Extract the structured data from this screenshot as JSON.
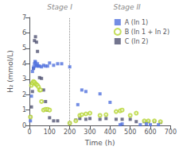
{
  "chart_data": {
    "type": "scatter",
    "xlabel": "Time (h)",
    "ylabel": "H₂ (mmol/L)",
    "annotations": [
      "Stage I",
      "Stage II"
    ],
    "vline_x": 200,
    "xlim": [
      0,
      700
    ],
    "ylim": [
      0,
      7
    ],
    "xticks": [
      0,
      100,
      200,
      300,
      400,
      500,
      600,
      700
    ],
    "yticks": [
      0,
      1,
      2,
      3,
      4,
      5,
      6,
      7
    ],
    "grid": false,
    "legend": "upper right",
    "series": [
      {
        "name": "A (In 1)",
        "marker": "square",
        "values": [
          [
            5,
            0.3
          ],
          [
            10,
            1.9
          ],
          [
            15,
            3.5
          ],
          [
            20,
            3.7
          ],
          [
            22,
            3.8
          ],
          [
            25,
            4.0
          ],
          [
            28,
            4.15
          ],
          [
            30,
            4.1
          ],
          [
            33,
            3.9
          ],
          [
            36,
            3.85
          ],
          [
            40,
            4.0
          ],
          [
            45,
            3.85
          ],
          [
            50,
            3.85
          ],
          [
            60,
            3.8
          ],
          [
            70,
            3.9
          ],
          [
            80,
            3.85
          ],
          [
            90,
            3.85
          ],
          [
            100,
            4.05
          ],
          [
            120,
            3.9
          ],
          [
            140,
            4.0
          ],
          [
            160,
            4.0
          ],
          [
            200,
            3.8
          ],
          [
            240,
            1.35
          ],
          [
            260,
            2.3
          ],
          [
            280,
            2.2
          ],
          [
            350,
            2.05
          ],
          [
            400,
            1.5
          ],
          [
            450,
            0.05
          ],
          [
            460,
            0.1
          ],
          [
            550,
            0.05
          ],
          [
            580,
            0.1
          ],
          [
            600,
            0.05
          ],
          [
            640,
            0.05
          ]
        ]
      },
      {
        "name": "B (In 1 + In 2)",
        "marker": "open_circle",
        "values": [
          [
            5,
            0.55
          ],
          [
            10,
            2.6
          ],
          [
            15,
            2.75
          ],
          [
            20,
            2.85
          ],
          [
            25,
            2.8
          ],
          [
            30,
            2.7
          ],
          [
            35,
            2.65
          ],
          [
            40,
            2.6
          ],
          [
            45,
            2.5
          ],
          [
            50,
            2.3
          ],
          [
            55,
            2.3
          ],
          [
            60,
            1.55
          ],
          [
            70,
            1.0
          ],
          [
            80,
            1.05
          ],
          [
            90,
            1.05
          ],
          [
            100,
            1.0
          ],
          [
            200,
            0.15
          ],
          [
            230,
            0.3
          ],
          [
            250,
            0.65
          ],
          [
            260,
            0.7
          ],
          [
            280,
            0.75
          ],
          [
            300,
            0.8
          ],
          [
            350,
            0.65
          ],
          [
            380,
            0.7
          ],
          [
            430,
            0.9
          ],
          [
            450,
            0.95
          ],
          [
            460,
            1.0
          ],
          [
            500,
            0.65
          ],
          [
            530,
            0.8
          ],
          [
            570,
            0.3
          ],
          [
            590,
            0.3
          ],
          [
            620,
            0.3
          ],
          [
            650,
            0.25
          ]
        ]
      },
      {
        "name": "C (In 2)",
        "marker": "square",
        "values": [
          [
            5,
            0.55
          ],
          [
            10,
            1.2
          ],
          [
            15,
            2.2
          ],
          [
            20,
            3.7
          ],
          [
            25,
            5.5
          ],
          [
            30,
            5.75
          ],
          [
            35,
            5.4
          ],
          [
            40,
            4.8
          ],
          [
            50,
            3.1
          ],
          [
            60,
            3.05
          ],
          [
            70,
            2.3
          ],
          [
            80,
            1.55
          ],
          [
            90,
            1.0
          ],
          [
            100,
            0.5
          ],
          [
            120,
            0.3
          ],
          [
            140,
            0.3
          ],
          [
            200,
            0.15
          ],
          [
            230,
            0.35
          ],
          [
            250,
            0.45
          ],
          [
            280,
            0.4
          ],
          [
            300,
            0.45
          ],
          [
            350,
            0.4
          ],
          [
            380,
            0.45
          ],
          [
            430,
            0.4
          ],
          [
            460,
            0.4
          ],
          [
            500,
            0.4
          ],
          [
            530,
            0.25
          ],
          [
            570,
            0.25
          ],
          [
            590,
            0.25
          ],
          [
            620,
            0.25
          ],
          [
            650,
            0.2
          ]
        ]
      }
    ]
  }
}
